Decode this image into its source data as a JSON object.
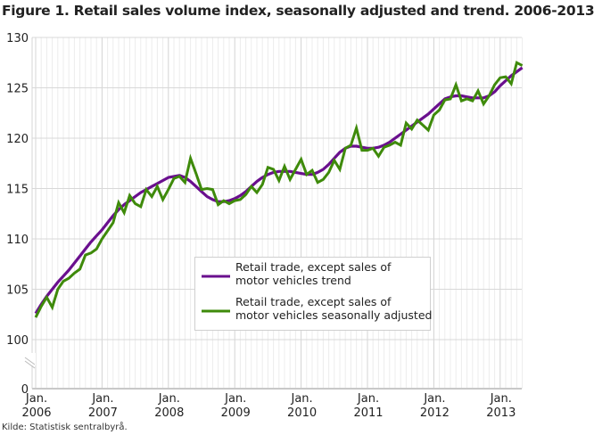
{
  "title": "Figure 1. Retail sales volume index, seasonally adjusted and trend. 2006-2013",
  "source": "Kilde: Statistisk sentralbyrå.",
  "chart_data": {
    "type": "line",
    "title": "Figure 1. Retail sales volume index, seasonally adjusted and trend. 2006-2013",
    "xlabel": "",
    "ylabel": "",
    "x_start": "2006-01",
    "x_frequency": "monthly",
    "x_end": "2013-05",
    "x_tick_labels": [
      [
        "Jan.",
        "2006"
      ],
      [
        "Jan.",
        "2007"
      ],
      [
        "Jan.",
        "2008"
      ],
      [
        "Jan.",
        "2009"
      ],
      [
        "Jan.",
        "2010"
      ],
      [
        "Jan.",
        "2011"
      ],
      [
        "Jan.",
        "2012"
      ],
      [
        "Jan.",
        "2013"
      ]
    ],
    "y_ticks": [
      0,
      100,
      105,
      110,
      115,
      120,
      125,
      130
    ],
    "ylim": [
      100,
      130
    ],
    "y_axis_break": true,
    "grid": true,
    "legend_position": "center-right",
    "series": [
      {
        "name": "Retail trade, except sales of motor vehicles trend",
        "legend_lines": [
          "Retail trade, except sales of",
          "motor vehicles trend"
        ],
        "color": "#6a0f8e",
        "values": [
          102.6,
          103.5,
          104.3,
          105.0,
          105.7,
          106.3,
          106.9,
          107.6,
          108.3,
          109.0,
          109.7,
          110.3,
          110.9,
          111.6,
          112.3,
          112.9,
          113.4,
          113.8,
          114.2,
          114.6,
          114.9,
          115.2,
          115.5,
          115.8,
          116.1,
          116.2,
          116.3,
          116.1,
          115.7,
          115.2,
          114.7,
          114.2,
          113.9,
          113.7,
          113.7,
          113.8,
          114.0,
          114.3,
          114.7,
          115.2,
          115.7,
          116.1,
          116.4,
          116.6,
          116.7,
          116.7,
          116.7,
          116.6,
          116.5,
          116.4,
          116.4,
          116.6,
          116.9,
          117.4,
          118.0,
          118.6,
          119.0,
          119.2,
          119.2,
          119.1,
          119.0,
          119.0,
          119.1,
          119.3,
          119.6,
          120.0,
          120.4,
          120.8,
          121.2,
          121.6,
          122.0,
          122.4,
          122.9,
          123.4,
          123.9,
          124.1,
          124.2,
          124.2,
          124.1,
          124.0,
          124.0,
          124.0,
          124.2,
          124.6,
          125.2,
          125.7,
          126.2,
          126.6,
          127.0
        ]
      },
      {
        "name": "Retail trade, except sales of motor vehicles seasonally adjusted",
        "legend_lines": [
          "Retail trade, except sales of",
          "motor vehicles seasonally adjusted"
        ],
        "color": "#3e8a0a",
        "values": [
          102.2,
          103.3,
          104.2,
          103.2,
          105.0,
          105.8,
          106.1,
          106.6,
          107.0,
          108.4,
          108.6,
          109.0,
          110.0,
          110.8,
          111.6,
          113.6,
          112.6,
          114.3,
          113.5,
          113.2,
          114.9,
          114.2,
          115.2,
          113.9,
          114.9,
          116.0,
          116.2,
          115.6,
          118.0,
          116.5,
          114.9,
          115.0,
          114.9,
          113.4,
          113.8,
          113.5,
          113.8,
          113.9,
          114.4,
          115.2,
          114.6,
          115.4,
          117.1,
          116.9,
          115.8,
          117.2,
          115.9,
          116.9,
          117.9,
          116.4,
          116.8,
          115.6,
          115.9,
          116.6,
          117.8,
          116.9,
          119.0,
          119.3,
          121.0,
          118.8,
          118.8,
          119.0,
          118.2,
          119.1,
          119.3,
          119.6,
          119.3,
          121.5,
          120.9,
          121.8,
          121.3,
          120.8,
          122.3,
          122.8,
          123.8,
          123.9,
          125.3,
          123.7,
          123.9,
          123.7,
          124.7,
          123.4,
          124.2,
          125.3,
          126.0,
          126.1,
          125.4,
          127.5,
          127.2
        ]
      }
    ]
  }
}
